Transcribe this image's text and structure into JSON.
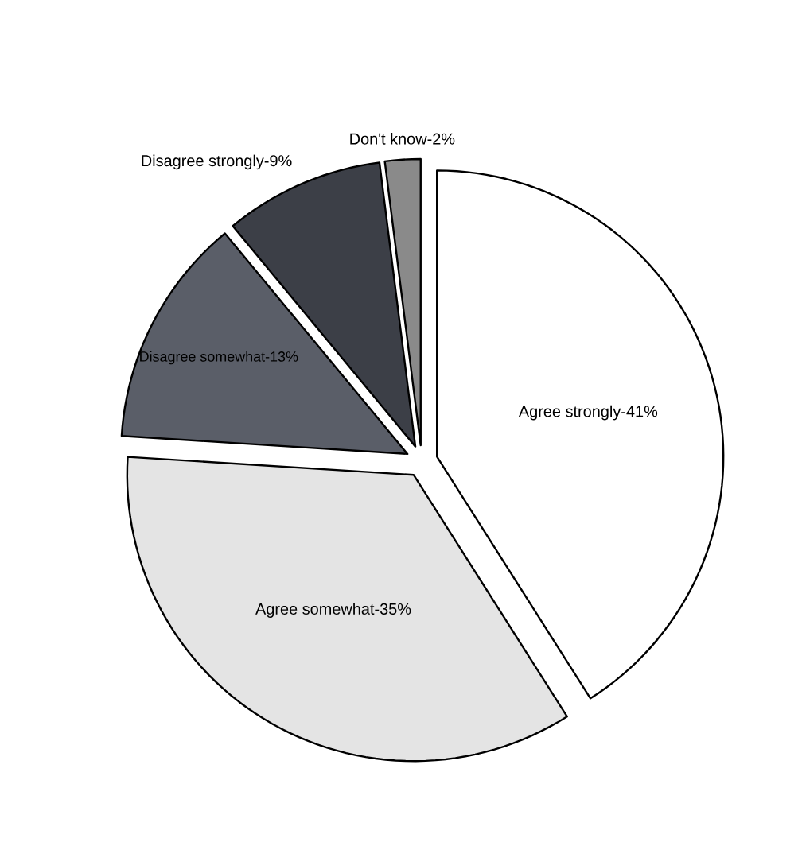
{
  "chart_data": {
    "type": "pie",
    "categories": [
      "Agree strongly-41%",
      "Agree somewhat-35%",
      "Disagree somewhat-13%",
      "Disagree strongly-9%",
      "Don't know-2%"
    ],
    "values": [
      41,
      35,
      13,
      9,
      2
    ],
    "colors": [
      "#ffffff",
      "#e4e4e4",
      "#5a5e68",
      "#3c3f47",
      "#8a8a8a"
    ]
  }
}
